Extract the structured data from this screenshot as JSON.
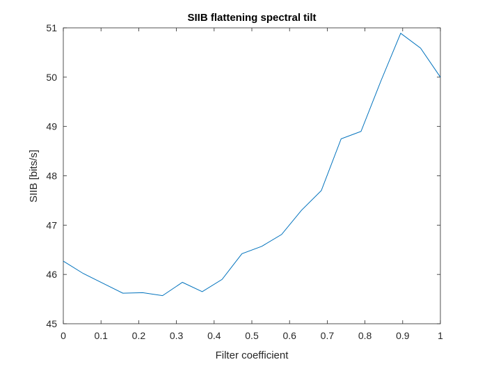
{
  "chart_data": {
    "type": "line",
    "title": "SIIB flattening spectral tilt",
    "xlabel": "Filter coefficient",
    "ylabel": "SIIB [bits/s]",
    "xlim": [
      0,
      1
    ],
    "ylim": [
      45,
      51
    ],
    "xticks": [
      "0",
      "0.1",
      "0.2",
      "0.3",
      "0.4",
      "0.5",
      "0.6",
      "0.7",
      "0.8",
      "0.9",
      "1"
    ],
    "yticks": [
      "45",
      "46",
      "47",
      "48",
      "49",
      "50",
      "51"
    ],
    "grid": false,
    "colors": {
      "series": "#0072BD",
      "axis": "#262626"
    },
    "series": [
      {
        "x": [
          0,
          0.0526,
          0.1053,
          0.1579,
          0.2105,
          0.2632,
          0.3158,
          0.3684,
          0.4211,
          0.4737,
          0.5263,
          0.5789,
          0.6316,
          0.6842,
          0.7368,
          0.7895,
          0.8421,
          0.8947,
          0.9474,
          1.0
        ],
        "y": [
          46.27,
          46.02,
          45.82,
          45.62,
          45.63,
          45.57,
          45.84,
          45.65,
          45.9,
          46.42,
          46.57,
          46.81,
          47.3,
          47.7,
          48.75,
          48.9,
          49.92,
          50.89,
          50.59,
          50.0
        ]
      }
    ]
  }
}
